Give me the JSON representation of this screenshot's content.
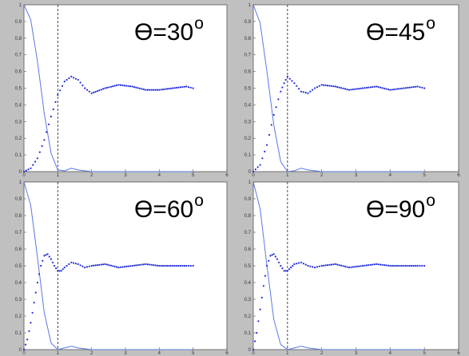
{
  "figure": {
    "background": "#c0c0c0",
    "axes_background": "#ffffff",
    "series_color": "#1f2bd6",
    "line_color": "#5a78e6",
    "vline_color": "#333333"
  },
  "chart_data": [
    {
      "type": "line",
      "title": "",
      "annotation": "ϴ=30",
      "annotation_suffix": "o",
      "xlim": [
        0,
        6
      ],
      "ylim": [
        0,
        1
      ],
      "xticks": [
        "0",
        "1",
        "2",
        "3",
        "4",
        "5",
        "6"
      ],
      "yticks": [
        "0",
        "0.1",
        "0.2",
        "0.3",
        "0.4",
        "0.5",
        "0.6",
        "0.7",
        "0.8",
        "0.9",
        "1"
      ],
      "vline_x": 1,
      "series": [
        {
          "style": "line",
          "x": [
            0,
            0.2,
            0.4,
            0.6,
            0.8,
            1.0,
            1.2,
            1.4,
            1.6,
            2.0,
            5.0
          ],
          "y": [
            1.0,
            0.91,
            0.66,
            0.35,
            0.11,
            0.01,
            0.005,
            0.02,
            0.01,
            0.0,
            0.0
          ]
        },
        {
          "style": "dots",
          "x": [
            0,
            0.2,
            0.4,
            0.6,
            0.8,
            1.0,
            1.2,
            1.4,
            1.6,
            1.8,
            2.0,
            2.4,
            2.8,
            3.2,
            3.6,
            4.0,
            4.4,
            4.8,
            5.0
          ],
          "y": [
            0.0,
            0.02,
            0.08,
            0.19,
            0.33,
            0.46,
            0.54,
            0.57,
            0.55,
            0.5,
            0.47,
            0.5,
            0.52,
            0.51,
            0.49,
            0.49,
            0.5,
            0.51,
            0.5
          ]
        }
      ]
    },
    {
      "type": "line",
      "title": "",
      "annotation": "ϴ=45",
      "annotation_suffix": "o",
      "xlim": [
        0,
        6
      ],
      "ylim": [
        0,
        1
      ],
      "xticks": [
        "0",
        "1",
        "2",
        "3",
        "4",
        "5",
        "6"
      ],
      "yticks": [
        "0",
        "0.1",
        "0.2",
        "0.3",
        "0.4",
        "0.5",
        "0.6",
        "0.7",
        "0.8",
        "0.9",
        "1"
      ],
      "vline_x": 1,
      "series": [
        {
          "style": "line",
          "x": [
            0,
            0.2,
            0.4,
            0.6,
            0.8,
            1.0,
            1.2,
            1.4,
            1.6,
            2.0,
            5.0
          ],
          "y": [
            1.0,
            0.89,
            0.6,
            0.28,
            0.06,
            0.0,
            0.005,
            0.02,
            0.01,
            0.0,
            0.0
          ]
        },
        {
          "style": "dots",
          "x": [
            0,
            0.2,
            0.4,
            0.6,
            0.8,
            0.9,
            1.0,
            1.2,
            1.4,
            1.6,
            1.8,
            2.0,
            2.4,
            2.8,
            3.2,
            3.6,
            4.0,
            4.4,
            4.8,
            5.0
          ],
          "y": [
            0.0,
            0.04,
            0.16,
            0.34,
            0.48,
            0.53,
            0.57,
            0.53,
            0.48,
            0.47,
            0.5,
            0.52,
            0.51,
            0.49,
            0.5,
            0.51,
            0.49,
            0.5,
            0.51,
            0.5
          ]
        }
      ]
    },
    {
      "type": "line",
      "title": "",
      "annotation": "ϴ=60",
      "annotation_suffix": "o",
      "xlim": [
        0,
        6
      ],
      "ylim": [
        0,
        1
      ],
      "xticks": [
        "0",
        "1",
        "2",
        "3",
        "4",
        "5",
        "6"
      ],
      "yticks": [
        "0",
        "0.1",
        "0.2",
        "0.3",
        "0.4",
        "0.5",
        "0.6",
        "0.7",
        "0.8",
        "0.9",
        "1"
      ],
      "vline_x": 1,
      "series": [
        {
          "style": "line",
          "x": [
            0,
            0.2,
            0.4,
            0.6,
            0.8,
            1.0,
            1.2,
            1.4,
            1.6,
            2.0,
            5.0
          ],
          "y": [
            1.0,
            0.86,
            0.55,
            0.22,
            0.04,
            0.0,
            0.01,
            0.02,
            0.01,
            0.0,
            0.0
          ]
        },
        {
          "style": "dots",
          "x": [
            0,
            0.1,
            0.2,
            0.3,
            0.4,
            0.5,
            0.6,
            0.7,
            0.8,
            0.9,
            1.0,
            1.1,
            1.2,
            1.4,
            1.6,
            1.8,
            2.0,
            2.4,
            2.8,
            3.2,
            3.6,
            4.0,
            4.4,
            4.8,
            5.0
          ],
          "y": [
            0.0,
            0.06,
            0.16,
            0.28,
            0.4,
            0.5,
            0.56,
            0.57,
            0.54,
            0.5,
            0.47,
            0.47,
            0.49,
            0.52,
            0.51,
            0.49,
            0.5,
            0.51,
            0.49,
            0.5,
            0.51,
            0.5,
            0.5,
            0.5,
            0.5
          ]
        }
      ]
    },
    {
      "type": "line",
      "title": "",
      "annotation": "ϴ=90",
      "annotation_suffix": "o",
      "xlim": [
        0,
        6
      ],
      "ylim": [
        0,
        1
      ],
      "xticks": [
        "0",
        "1",
        "2",
        "3",
        "4",
        "5",
        "6"
      ],
      "yticks": [
        "0",
        "0.1",
        "0.2",
        "0.3",
        "0.4",
        "0.5",
        "0.6",
        "0.7",
        "0.8",
        "0.9",
        "1"
      ],
      "vline_x": 1,
      "series": [
        {
          "style": "line",
          "x": [
            0,
            0.2,
            0.4,
            0.6,
            0.8,
            1.0,
            1.2,
            1.4,
            1.6,
            2.0,
            5.0
          ],
          "y": [
            1.0,
            0.84,
            0.5,
            0.18,
            0.03,
            0.0,
            0.01,
            0.02,
            0.01,
            0.0,
            0.0
          ]
        },
        {
          "style": "dots",
          "x": [
            0,
            0.1,
            0.2,
            0.3,
            0.4,
            0.5,
            0.6,
            0.7,
            0.8,
            0.9,
            1.0,
            1.1,
            1.2,
            1.4,
            1.6,
            1.8,
            2.0,
            2.4,
            2.8,
            3.2,
            3.6,
            4.0,
            4.4,
            4.8,
            5.0
          ],
          "y": [
            0.0,
            0.1,
            0.24,
            0.38,
            0.5,
            0.56,
            0.57,
            0.54,
            0.5,
            0.47,
            0.47,
            0.49,
            0.51,
            0.52,
            0.5,
            0.49,
            0.5,
            0.51,
            0.49,
            0.5,
            0.51,
            0.5,
            0.5,
            0.5,
            0.5
          ]
        }
      ]
    }
  ]
}
